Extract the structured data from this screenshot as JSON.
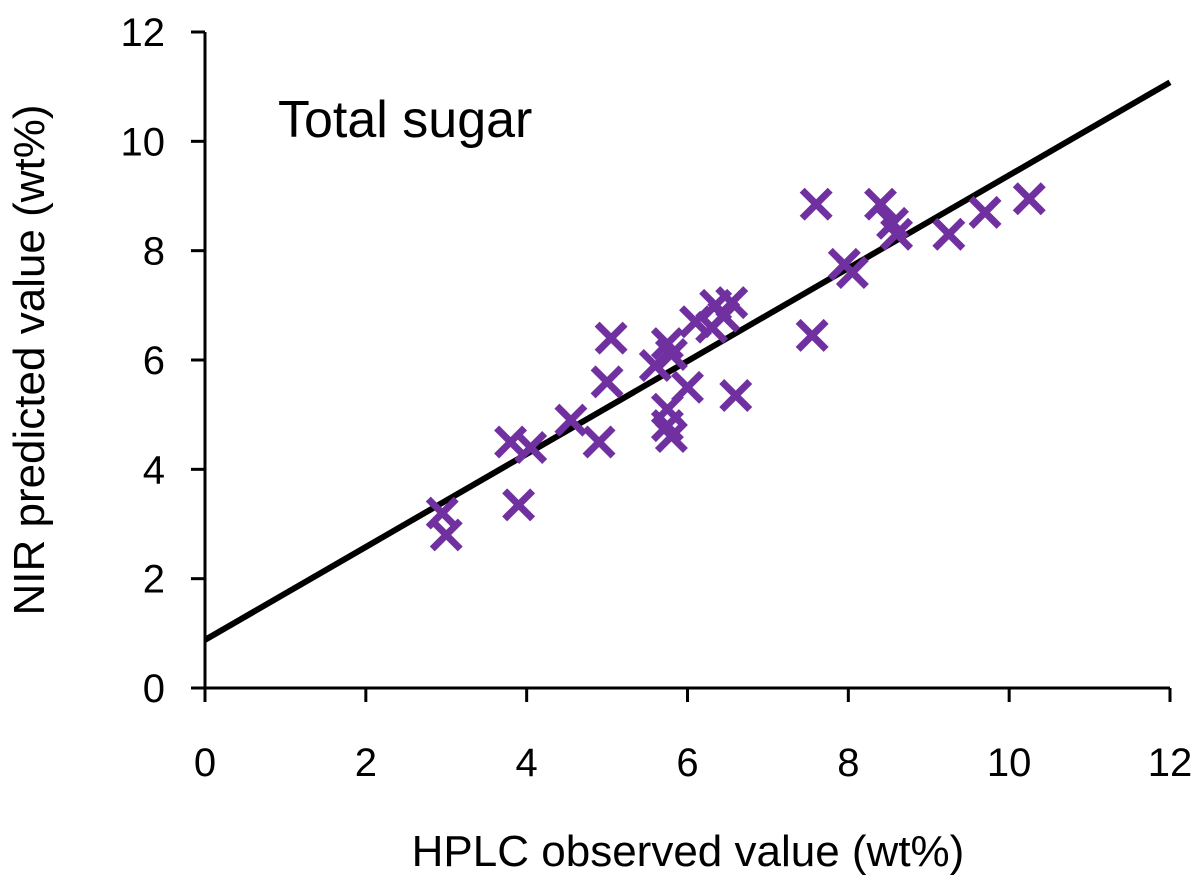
{
  "chart_data": {
    "type": "scatter",
    "title": "Total sugar",
    "xlabel": "HPLC observed value (wt%)",
    "ylabel": "NIR predicted value (wt%)",
    "xlim": [
      0,
      12
    ],
    "ylim": [
      0,
      12
    ],
    "xticks": [
      "0",
      "2",
      "4",
      "6",
      "8",
      "10",
      "12"
    ],
    "yticks": [
      "0",
      "2",
      "4",
      "6",
      "8",
      "10",
      "12"
    ],
    "grid": false,
    "marker": "x",
    "marker_color": "#7030A0",
    "line_color": "#000000",
    "points": [
      [
        2.95,
        3.2
      ],
      [
        3.0,
        2.8
      ],
      [
        3.8,
        4.5
      ],
      [
        4.05,
        4.4
      ],
      [
        3.9,
        3.35
      ],
      [
        4.55,
        4.9
      ],
      [
        4.9,
        4.5
      ],
      [
        5.0,
        5.6
      ],
      [
        5.05,
        6.4
      ],
      [
        5.6,
        5.9
      ],
      [
        5.75,
        6.3
      ],
      [
        5.8,
        6.1
      ],
      [
        5.75,
        4.8
      ],
      [
        5.8,
        4.6
      ],
      [
        5.75,
        5.1
      ],
      [
        6.0,
        5.5
      ],
      [
        6.1,
        6.7
      ],
      [
        6.3,
        6.6
      ],
      [
        6.35,
        7.0
      ],
      [
        6.45,
        6.8
      ],
      [
        6.55,
        7.05
      ],
      [
        6.6,
        5.35
      ],
      [
        7.55,
        6.45
      ],
      [
        7.6,
        8.85
      ],
      [
        7.95,
        7.75
      ],
      [
        8.05,
        7.6
      ],
      [
        8.4,
        8.85
      ],
      [
        8.55,
        8.5
      ],
      [
        8.6,
        8.3
      ],
      [
        9.25,
        8.3
      ],
      [
        9.7,
        8.7
      ],
      [
        10.25,
        8.95
      ]
    ],
    "fit_line": {
      "intercept": 0.88,
      "slope": 0.85
    }
  }
}
